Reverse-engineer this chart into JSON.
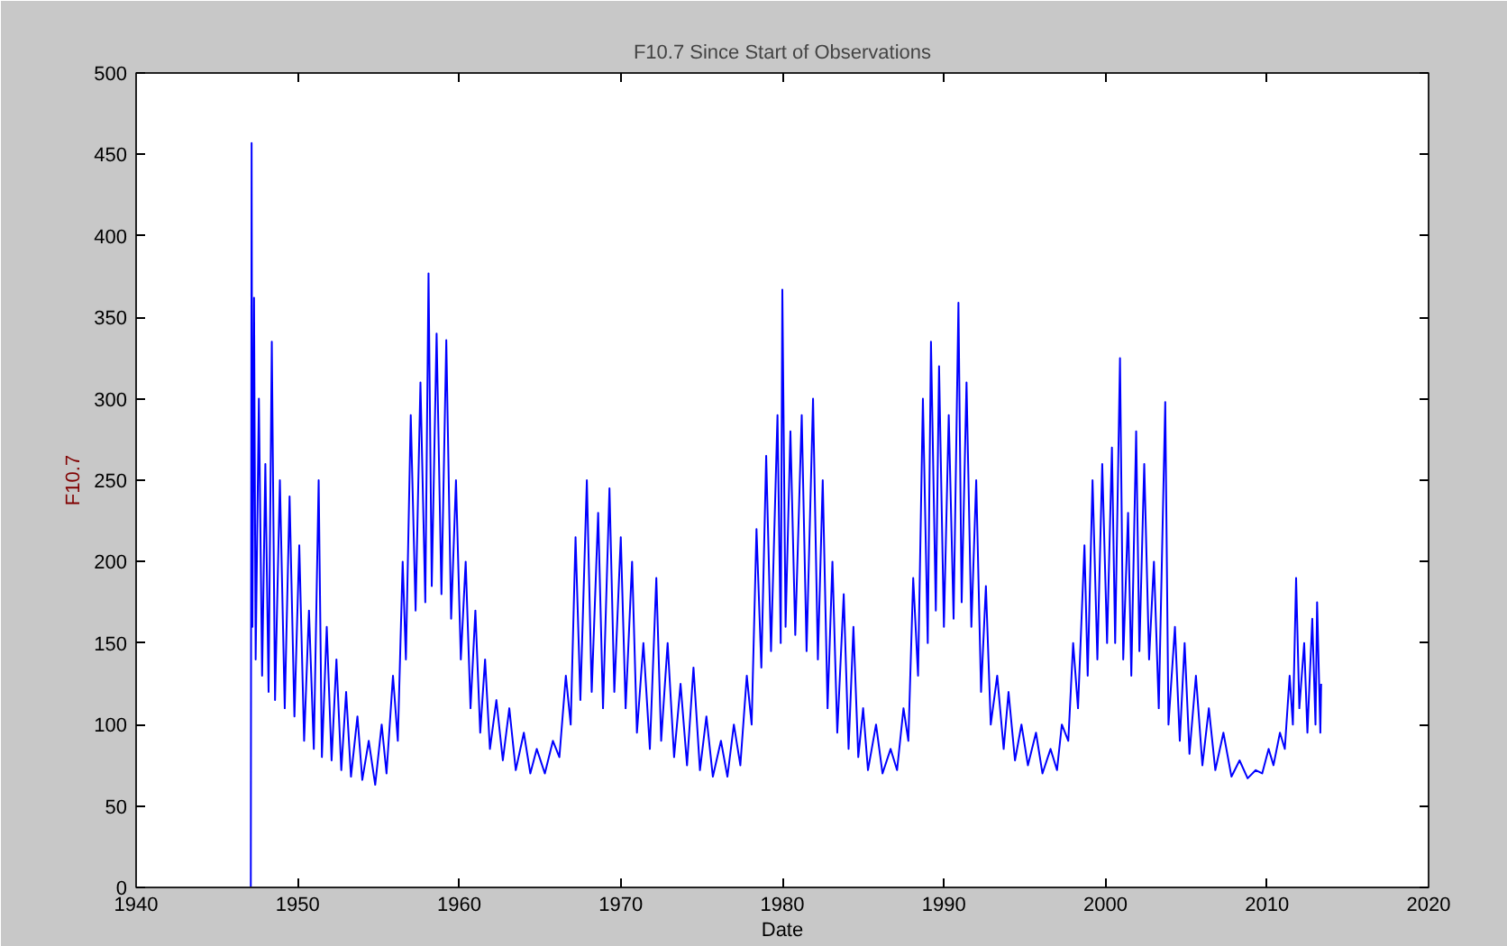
{
  "chart_data": {
    "type": "line",
    "title": "F10.7 Since Start of Observations",
    "xlabel": "Date",
    "ylabel": "F10.7",
    "xlim": [
      1940,
      2020
    ],
    "xticks": [
      1940,
      1950,
      1960,
      1970,
      1980,
      1990,
      2000,
      2010,
      2020
    ],
    "ylim": [
      0,
      500
    ],
    "yticks": [
      0,
      50,
      100,
      150,
      200,
      250,
      300,
      350,
      400,
      450,
      500
    ],
    "grid": false,
    "series": [
      {
        "color": "#0000ff",
        "x": [
          1947.1,
          1947.15,
          1947.2,
          1947.3,
          1947.4,
          1947.6,
          1947.8,
          1948.0,
          1948.2,
          1948.4,
          1948.6,
          1948.9,
          1949.2,
          1949.5,
          1949.8,
          1950.1,
          1950.4,
          1950.7,
          1951.0,
          1951.3,
          1951.5,
          1951.8,
          1952.1,
          1952.4,
          1952.7,
          1953.0,
          1953.3,
          1953.7,
          1954.0,
          1954.4,
          1954.8,
          1955.2,
          1955.5,
          1955.9,
          1956.2,
          1956.5,
          1956.7,
          1957.0,
          1957.3,
          1957.6,
          1957.9,
          1958.1,
          1958.3,
          1958.6,
          1958.9,
          1959.2,
          1959.5,
          1959.8,
          1960.1,
          1960.4,
          1960.7,
          1961.0,
          1961.3,
          1961.6,
          1961.9,
          1962.3,
          1962.7,
          1963.1,
          1963.5,
          1964.0,
          1964.4,
          1964.8,
          1965.3,
          1965.8,
          1966.2,
          1966.6,
          1966.9,
          1967.2,
          1967.5,
          1967.9,
          1968.2,
          1968.6,
          1968.9,
          1969.3,
          1969.6,
          1970.0,
          1970.3,
          1970.7,
          1971.0,
          1971.4,
          1971.8,
          1972.2,
          1972.5,
          1972.9,
          1973.3,
          1973.7,
          1974.1,
          1974.5,
          1974.9,
          1975.3,
          1975.7,
          1976.2,
          1976.6,
          1977.0,
          1977.4,
          1977.8,
          1978.1,
          1978.4,
          1978.7,
          1979.0,
          1979.3,
          1979.7,
          1979.9,
          1980.0,
          1980.2,
          1980.5,
          1980.8,
          1981.2,
          1981.5,
          1981.9,
          1982.2,
          1982.5,
          1982.8,
          1983.1,
          1983.4,
          1983.8,
          1984.1,
          1984.4,
          1984.7,
          1985.0,
          1985.3,
          1985.8,
          1986.2,
          1986.7,
          1987.1,
          1987.5,
          1987.8,
          1988.1,
          1988.4,
          1988.7,
          1989.0,
          1989.2,
          1989.5,
          1989.7,
          1990.0,
          1990.3,
          1990.6,
          1990.9,
          1991.1,
          1991.4,
          1991.7,
          1992.0,
          1992.3,
          1992.6,
          1992.9,
          1993.3,
          1993.7,
          1994.0,
          1994.4,
          1994.8,
          1995.2,
          1995.7,
          1996.1,
          1996.6,
          1997.0,
          1997.3,
          1997.7,
          1998.0,
          1998.3,
          1998.7,
          1998.9,
          1999.2,
          1999.5,
          1999.8,
          2000.1,
          2000.4,
          2000.6,
          2000.9,
          2001.1,
          2001.4,
          2001.6,
          2001.9,
          2002.1,
          2002.4,
          2002.7,
          2003.0,
          2003.3,
          2003.7,
          2003.9,
          2004.3,
          2004.6,
          2004.9,
          2005.2,
          2005.6,
          2006.0,
          2006.4,
          2006.8,
          2007.3,
          2007.8,
          2008.3,
          2008.8,
          2009.3,
          2009.7,
          2010.1,
          2010.4,
          2010.8,
          2011.1,
          2011.4,
          2011.6,
          2011.8,
          2012.0,
          2012.3,
          2012.5,
          2012.8,
          2013.0,
          2013.1,
          2013.3,
          2013.35
        ],
        "values": [
          0,
          457,
          160,
          362,
          140,
          300,
          130,
          260,
          120,
          335,
          115,
          250,
          110,
          240,
          105,
          210,
          90,
          170,
          85,
          250,
          80,
          160,
          78,
          140,
          72,
          120,
          68,
          105,
          66,
          90,
          63,
          100,
          70,
          130,
          90,
          200,
          140,
          290,
          170,
          310,
          175,
          377,
          185,
          340,
          180,
          336,
          165,
          250,
          140,
          200,
          110,
          170,
          95,
          140,
          85,
          115,
          78,
          110,
          72,
          95,
          70,
          85,
          70,
          90,
          80,
          130,
          100,
          215,
          115,
          250,
          120,
          230,
          110,
          245,
          120,
          215,
          110,
          200,
          95,
          150,
          85,
          190,
          90,
          150,
          80,
          125,
          75,
          135,
          72,
          105,
          68,
          90,
          68,
          100,
          75,
          130,
          100,
          220,
          135,
          265,
          145,
          290,
          150,
          367,
          160,
          280,
          155,
          290,
          145,
          300,
          140,
          250,
          110,
          200,
          95,
          180,
          85,
          160,
          80,
          110,
          72,
          100,
          70,
          85,
          72,
          110,
          90,
          190,
          130,
          300,
          150,
          335,
          170,
          320,
          160,
          290,
          165,
          359,
          175,
          310,
          160,
          250,
          120,
          185,
          100,
          130,
          85,
          120,
          78,
          100,
          75,
          95,
          70,
          85,
          72,
          100,
          90,
          150,
          110,
          210,
          130,
          250,
          140,
          260,
          150,
          270,
          150,
          325,
          140,
          230,
          130,
          280,
          145,
          260,
          140,
          200,
          110,
          298,
          100,
          160,
          90,
          150,
          82,
          130,
          75,
          110,
          72,
          95,
          68,
          78,
          67,
          72,
          70,
          85,
          75,
          95,
          85,
          130,
          100,
          190,
          110,
          150,
          95,
          165,
          100,
          175,
          95,
          125
        ]
      }
    ]
  }
}
